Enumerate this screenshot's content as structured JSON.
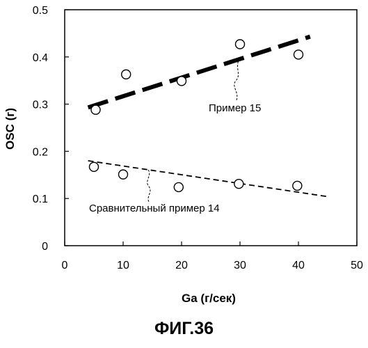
{
  "figure_caption": "ФИГ.36",
  "chart_data": {
    "type": "scatter",
    "title": "",
    "xlabel": "Ga (г/сек)",
    "ylabel": "OSC (г)",
    "xlim": [
      0,
      50
    ],
    "ylim": [
      0,
      0.5
    ],
    "x_ticks": [
      0,
      10,
      20,
      30,
      40,
      50
    ],
    "y_ticks": [
      0,
      0.1,
      0.2,
      0.3,
      0.4,
      0.5
    ],
    "x_tick_labels": [
      "0",
      "10",
      "20",
      "30",
      "40",
      "50"
    ],
    "y_tick_labels": [
      "0",
      "0.1",
      "0.2",
      "0.3",
      "0.4",
      "0.5"
    ],
    "grid": false,
    "series": [
      {
        "label": "Пример 15",
        "points": [
          {
            "x": 5.3,
            "y": 0.288
          },
          {
            "x": 10.5,
            "y": 0.363
          },
          {
            "x": 20.0,
            "y": 0.349
          },
          {
            "x": 30.0,
            "y": 0.427
          },
          {
            "x": 40.0,
            "y": 0.405
          }
        ],
        "trend": {
          "x": [
            4,
            42
          ],
          "y": [
            0.293,
            0.443
          ],
          "style": "long-dash-thick"
        }
      },
      {
        "label": "Сравнительный пример 14",
        "points": [
          {
            "x": 5.0,
            "y": 0.167
          },
          {
            "x": 10.0,
            "y": 0.151
          },
          {
            "x": 19.5,
            "y": 0.124
          },
          {
            "x": 29.8,
            "y": 0.131
          },
          {
            "x": 39.8,
            "y": 0.127
          }
        ],
        "trend": {
          "x": [
            4,
            45
          ],
          "y": [
            0.18,
            0.104
          ],
          "style": "short-dash-thin"
        }
      }
    ]
  }
}
